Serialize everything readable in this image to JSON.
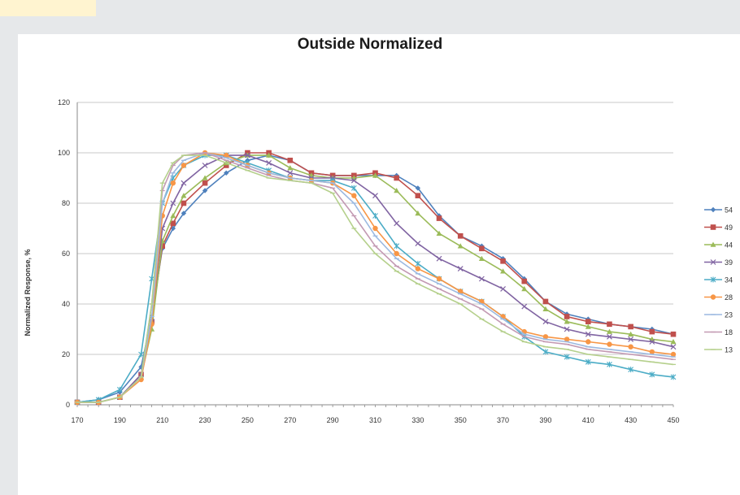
{
  "chart_data": {
    "type": "line",
    "title": "Outside Normalized",
    "xlabel": "",
    "ylabel": "Normalized Response, %",
    "xlim": [
      170,
      450
    ],
    "ylim": [
      0,
      120
    ],
    "x_ticks": [
      170,
      190,
      210,
      230,
      250,
      270,
      290,
      310,
      330,
      350,
      370,
      390,
      410,
      430,
      450
    ],
    "y_ticks": [
      0,
      20,
      40,
      60,
      80,
      100,
      120
    ],
    "grid": true,
    "legend_position": "right",
    "series": [
      {
        "name": "54",
        "color": "#4f81bd",
        "marker": "diamond",
        "points": [
          [
            170,
            1
          ],
          [
            180,
            2
          ],
          [
            190,
            5
          ],
          [
            200,
            15
          ],
          [
            205,
            35
          ],
          [
            210,
            62
          ],
          [
            215,
            70
          ],
          [
            220,
            76
          ],
          [
            230,
            85
          ],
          [
            240,
            92
          ],
          [
            250,
            97
          ],
          [
            260,
            99
          ],
          [
            270,
            97
          ],
          [
            280,
            92
          ],
          [
            290,
            91
          ],
          [
            300,
            91
          ],
          [
            310,
            91
          ],
          [
            320,
            91
          ],
          [
            330,
            86
          ],
          [
            340,
            75
          ],
          [
            350,
            67
          ],
          [
            360,
            63
          ],
          [
            370,
            58
          ],
          [
            380,
            50
          ],
          [
            390,
            41
          ],
          [
            400,
            36
          ],
          [
            410,
            34
          ],
          [
            420,
            32
          ],
          [
            430,
            31
          ],
          [
            440,
            30
          ],
          [
            450,
            28
          ]
        ]
      },
      {
        "name": "49",
        "color": "#c0504d",
        "marker": "square",
        "points": [
          [
            170,
            1
          ],
          [
            180,
            1
          ],
          [
            190,
            3
          ],
          [
            200,
            12
          ],
          [
            205,
            33
          ],
          [
            210,
            63
          ],
          [
            215,
            72
          ],
          [
            220,
            80
          ],
          [
            230,
            88
          ],
          [
            240,
            95
          ],
          [
            250,
            100
          ],
          [
            260,
            100
          ],
          [
            270,
            97
          ],
          [
            280,
            92
          ],
          [
            290,
            91
          ],
          [
            300,
            91
          ],
          [
            310,
            92
          ],
          [
            320,
            90
          ],
          [
            330,
            83
          ],
          [
            340,
            74
          ],
          [
            350,
            67
          ],
          [
            360,
            62
          ],
          [
            370,
            57
          ],
          [
            380,
            49
          ],
          [
            390,
            41
          ],
          [
            400,
            35
          ],
          [
            410,
            33
          ],
          [
            420,
            32
          ],
          [
            430,
            31
          ],
          [
            440,
            29
          ],
          [
            450,
            28
          ]
        ]
      },
      {
        "name": "44",
        "color": "#9bbb59",
        "marker": "triangle",
        "points": [
          [
            170,
            1
          ],
          [
            180,
            1
          ],
          [
            190,
            3
          ],
          [
            200,
            11
          ],
          [
            205,
            30
          ],
          [
            210,
            65
          ],
          [
            215,
            75
          ],
          [
            220,
            83
          ],
          [
            230,
            90
          ],
          [
            240,
            96
          ],
          [
            250,
            99
          ],
          [
            260,
            99
          ],
          [
            270,
            94
          ],
          [
            280,
            91
          ],
          [
            290,
            90
          ],
          [
            300,
            90
          ],
          [
            310,
            91
          ],
          [
            320,
            85
          ],
          [
            330,
            76
          ],
          [
            340,
            68
          ],
          [
            350,
            63
          ],
          [
            360,
            58
          ],
          [
            370,
            53
          ],
          [
            380,
            46
          ],
          [
            390,
            38
          ],
          [
            400,
            33
          ],
          [
            410,
            31
          ],
          [
            420,
            29
          ],
          [
            430,
            28
          ],
          [
            440,
            26
          ],
          [
            450,
            25
          ]
        ]
      },
      {
        "name": "39",
        "color": "#8064a2",
        "marker": "x",
        "points": [
          [
            170,
            1
          ],
          [
            180,
            1
          ],
          [
            190,
            3
          ],
          [
            200,
            12
          ],
          [
            205,
            33
          ],
          [
            210,
            70
          ],
          [
            215,
            80
          ],
          [
            220,
            88
          ],
          [
            230,
            95
          ],
          [
            240,
            99
          ],
          [
            250,
            99
          ],
          [
            260,
            96
          ],
          [
            270,
            92
          ],
          [
            280,
            90
          ],
          [
            290,
            90
          ],
          [
            300,
            89
          ],
          [
            310,
            83
          ],
          [
            320,
            72
          ],
          [
            330,
            64
          ],
          [
            340,
            58
          ],
          [
            350,
            54
          ],
          [
            360,
            50
          ],
          [
            370,
            46
          ],
          [
            380,
            39
          ],
          [
            390,
            33
          ],
          [
            400,
            30
          ],
          [
            410,
            28
          ],
          [
            420,
            27
          ],
          [
            430,
            26
          ],
          [
            440,
            25
          ],
          [
            450,
            23
          ]
        ]
      },
      {
        "name": "34",
        "color": "#4bacc6",
        "marker": "star",
        "points": [
          [
            170,
            1
          ],
          [
            180,
            2
          ],
          [
            190,
            6
          ],
          [
            200,
            20
          ],
          [
            205,
            50
          ],
          [
            210,
            80
          ],
          [
            215,
            90
          ],
          [
            220,
            95
          ],
          [
            230,
            99
          ],
          [
            240,
            99
          ],
          [
            250,
            96
          ],
          [
            260,
            93
          ],
          [
            270,
            90
          ],
          [
            280,
            89
          ],
          [
            290,
            89
          ],
          [
            300,
            86
          ],
          [
            310,
            75
          ],
          [
            320,
            63
          ],
          [
            330,
            56
          ],
          [
            340,
            50
          ],
          [
            350,
            45
          ],
          [
            360,
            41
          ],
          [
            370,
            35
          ],
          [
            380,
            27
          ],
          [
            390,
            21
          ],
          [
            400,
            19
          ],
          [
            410,
            17
          ],
          [
            420,
            16
          ],
          [
            430,
            14
          ],
          [
            440,
            12
          ],
          [
            450,
            11
          ]
        ]
      },
      {
        "name": "28",
        "color": "#f79646",
        "marker": "circle",
        "points": [
          [
            170,
            1
          ],
          [
            180,
            1
          ],
          [
            190,
            3
          ],
          [
            200,
            10
          ],
          [
            205,
            32
          ],
          [
            210,
            75
          ],
          [
            215,
            88
          ],
          [
            220,
            95
          ],
          [
            230,
            100
          ],
          [
            240,
            99
          ],
          [
            250,
            95
          ],
          [
            260,
            92
          ],
          [
            270,
            90
          ],
          [
            280,
            89
          ],
          [
            290,
            88
          ],
          [
            300,
            83
          ],
          [
            310,
            70
          ],
          [
            320,
            60
          ],
          [
            330,
            54
          ],
          [
            340,
            50
          ],
          [
            350,
            45
          ],
          [
            360,
            41
          ],
          [
            370,
            35
          ],
          [
            380,
            29
          ],
          [
            390,
            27
          ],
          [
            400,
            26
          ],
          [
            410,
            25
          ],
          [
            420,
            24
          ],
          [
            430,
            23
          ],
          [
            440,
            21
          ],
          [
            450,
            20
          ]
        ]
      },
      {
        "name": "23",
        "color": "#9cb9e0",
        "marker": "dash",
        "points": [
          [
            170,
            1
          ],
          [
            180,
            1
          ],
          [
            190,
            3
          ],
          [
            200,
            11
          ],
          [
            205,
            35
          ],
          [
            210,
            80
          ],
          [
            215,
            92
          ],
          [
            220,
            97
          ],
          [
            230,
            100
          ],
          [
            240,
            98
          ],
          [
            250,
            95
          ],
          [
            260,
            92
          ],
          [
            270,
            90
          ],
          [
            280,
            89
          ],
          [
            290,
            88
          ],
          [
            300,
            80
          ],
          [
            310,
            67
          ],
          [
            320,
            58
          ],
          [
            330,
            52
          ],
          [
            340,
            48
          ],
          [
            350,
            44
          ],
          [
            360,
            40
          ],
          [
            370,
            34
          ],
          [
            380,
            28
          ],
          [
            390,
            26
          ],
          [
            400,
            25
          ],
          [
            410,
            23
          ],
          [
            420,
            22
          ],
          [
            430,
            21
          ],
          [
            440,
            20
          ],
          [
            450,
            19
          ]
        ]
      },
      {
        "name": "18",
        "color": "#c39ab3",
        "marker": "dash",
        "points": [
          [
            170,
            1
          ],
          [
            180,
            1
          ],
          [
            190,
            3
          ],
          [
            200,
            11
          ],
          [
            205,
            40
          ],
          [
            210,
            85
          ],
          [
            215,
            95
          ],
          [
            220,
            99
          ],
          [
            230,
            100
          ],
          [
            240,
            97
          ],
          [
            250,
            94
          ],
          [
            260,
            91
          ],
          [
            270,
            89
          ],
          [
            280,
            88
          ],
          [
            290,
            86
          ],
          [
            300,
            75
          ],
          [
            310,
            63
          ],
          [
            320,
            55
          ],
          [
            330,
            50
          ],
          [
            340,
            46
          ],
          [
            350,
            42
          ],
          [
            360,
            38
          ],
          [
            370,
            32
          ],
          [
            380,
            27
          ],
          [
            390,
            25
          ],
          [
            400,
            24
          ],
          [
            410,
            22
          ],
          [
            420,
            21
          ],
          [
            430,
            20
          ],
          [
            440,
            19
          ],
          [
            450,
            18
          ]
        ]
      },
      {
        "name": "13",
        "color": "#b5d08c",
        "marker": "dash",
        "points": [
          [
            170,
            1
          ],
          [
            180,
            1
          ],
          [
            190,
            3
          ],
          [
            200,
            11
          ],
          [
            205,
            40
          ],
          [
            210,
            88
          ],
          [
            215,
            96
          ],
          [
            220,
            99
          ],
          [
            230,
            99
          ],
          [
            240,
            96
          ],
          [
            250,
            93
          ],
          [
            260,
            90
          ],
          [
            270,
            89
          ],
          [
            280,
            88
          ],
          [
            290,
            84
          ],
          [
            300,
            70
          ],
          [
            310,
            60
          ],
          [
            320,
            53
          ],
          [
            330,
            48
          ],
          [
            340,
            44
          ],
          [
            350,
            40
          ],
          [
            360,
            34
          ],
          [
            370,
            29
          ],
          [
            380,
            25
          ],
          [
            390,
            23
          ],
          [
            400,
            22
          ],
          [
            410,
            20
          ],
          [
            420,
            19
          ],
          [
            430,
            18
          ],
          [
            440,
            17
          ],
          [
            450,
            16
          ]
        ]
      }
    ]
  }
}
